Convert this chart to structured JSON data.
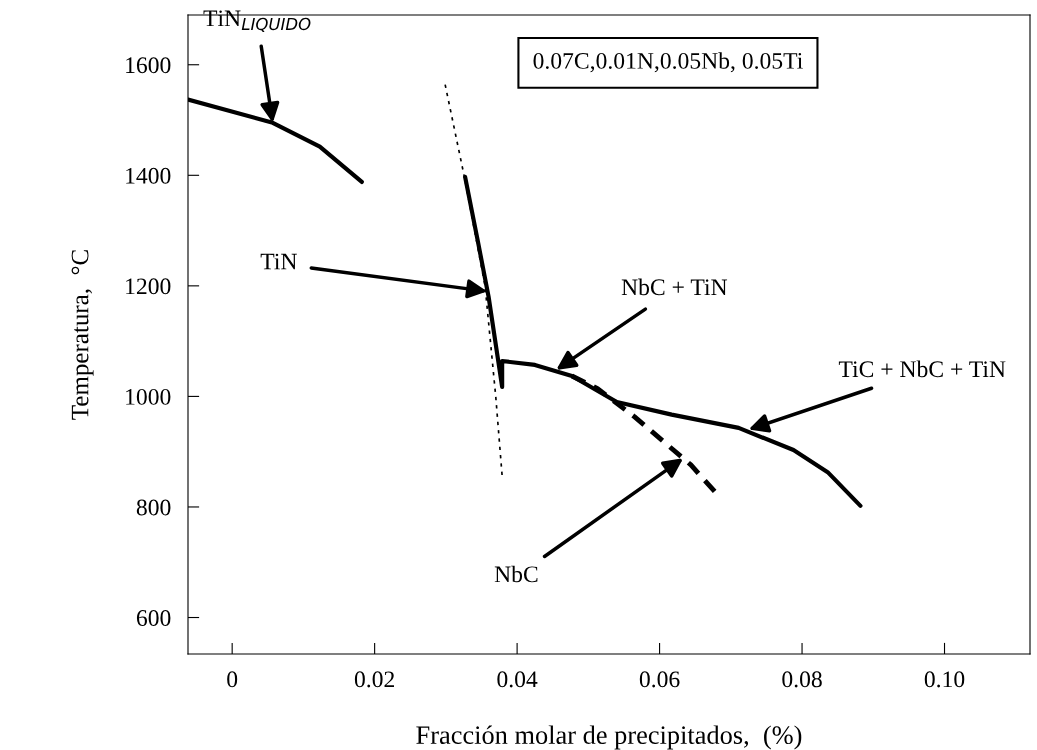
{
  "chart_data": {
    "type": "line",
    "xlabel": "Fracción molar de precipitados,  (%)",
    "ylabel": "Temperatura,  °C",
    "xlim": [
      -0.0062,
      0.112
    ],
    "ylim": [
      534,
      1690
    ],
    "xticks": [
      0,
      0.02,
      0.04,
      0.06,
      0.08,
      {
        "value": 0.1,
        "label": "0.10"
      }
    ],
    "yticks": [
      600,
      800,
      1000,
      1200,
      1400,
      1600
    ],
    "grid": false,
    "legend": false,
    "marker": "none",
    "series": [
      {
        "color": "#000000",
        "line_style": "solid",
        "x": [
          -0.0062,
          0.0057,
          0.0123,
          0.0182
        ],
        "values": [
          1537,
          1495,
          1452,
          1388
        ]
      },
      {
        "color": "#000000",
        "line_style": "dashed",
        "x": [
          0.0299,
          0.0326,
          0.0355,
          0.037,
          0.0379
        ],
        "values": [
          1564,
          1397,
          1200,
          1000,
          856
        ]
      },
      {
        "color": "#000000",
        "line_style": "solid",
        "x": [
          0.0327,
          0.0345,
          0.036,
          0.0379,
          0.0379,
          0.0425,
          0.0477,
          0.054,
          0.0617,
          0.0711,
          0.0788,
          0.0836,
          0.0882
        ],
        "values": [
          1397,
          1280,
          1180,
          1017,
          1064,
          1057,
          1037,
          990,
          967,
          943,
          903,
          863,
          802
        ]
      },
      {
        "color": "#000000",
        "line_style": "dashed",
        "x": [
          0.0477,
          0.0513,
          0.0565,
          0.0644,
          0.0683
        ],
        "values": [
          1037,
          1014,
          963,
          876,
          820
        ]
      }
    ],
    "annotations": [
      {
        "text": "TiN$_{LIQUIDO}$",
        "x": 0.0057,
        "y": 1495
      },
      {
        "text": "TiN",
        "x": 0.0358,
        "y": 1190
      },
      {
        "text": "NbC + TiN",
        "x": 0.0455,
        "y": 1048
      },
      {
        "text": "TiC + NbC + TiN",
        "x": 0.0725,
        "y": 940
      },
      {
        "text": "NbC",
        "x": 0.0633,
        "y": 888
      },
      "0.07C,0.01N,0.05Nb, 0.05Ti"
    ]
  }
}
